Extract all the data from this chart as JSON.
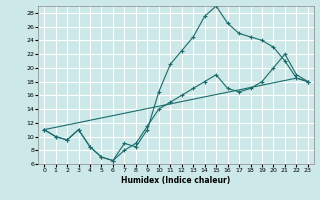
{
  "xlabel": "Humidex (Indice chaleur)",
  "ylabel": "",
  "bg_color": "#cde8e8",
  "grid_color": "#ffffff",
  "line_color": "#1a6b6b",
  "marker": "+",
  "xlim": [
    -0.5,
    23.5
  ],
  "ylim": [
    6,
    29
  ],
  "xticks": [
    0,
    1,
    2,
    3,
    4,
    5,
    6,
    7,
    8,
    9,
    10,
    11,
    12,
    13,
    14,
    15,
    16,
    17,
    18,
    19,
    20,
    21,
    22,
    23
  ],
  "yticks": [
    6,
    8,
    10,
    12,
    14,
    16,
    18,
    20,
    22,
    24,
    26,
    28
  ],
  "line1_x": [
    0,
    1,
    2,
    3,
    4,
    5,
    6,
    7,
    8,
    9,
    10,
    11,
    12,
    13,
    14,
    15,
    16,
    17,
    18,
    19,
    20,
    21,
    22,
    23
  ],
  "line1_y": [
    11,
    10,
    9.5,
    11,
    8.5,
    7,
    6.5,
    9,
    8.5,
    11,
    16.5,
    20.5,
    22.5,
    24.5,
    27.5,
    29,
    26.5,
    25,
    24.5,
    24,
    23,
    21,
    18.5,
    18
  ],
  "line2_x": [
    0,
    1,
    2,
    3,
    4,
    5,
    6,
    7,
    8,
    9,
    10,
    11,
    12,
    13,
    14,
    15,
    16,
    17,
    18,
    19,
    20,
    21,
    22,
    23
  ],
  "line2_y": [
    11,
    10,
    9.5,
    11,
    8.5,
    7,
    6.5,
    8,
    9,
    11.5,
    14,
    15,
    16,
    17,
    18,
    19,
    17,
    16.5,
    17,
    18,
    20,
    22,
    19,
    18
  ],
  "line3_x": [
    0,
    22,
    23
  ],
  "line3_y": [
    11,
    18.5,
    18
  ]
}
